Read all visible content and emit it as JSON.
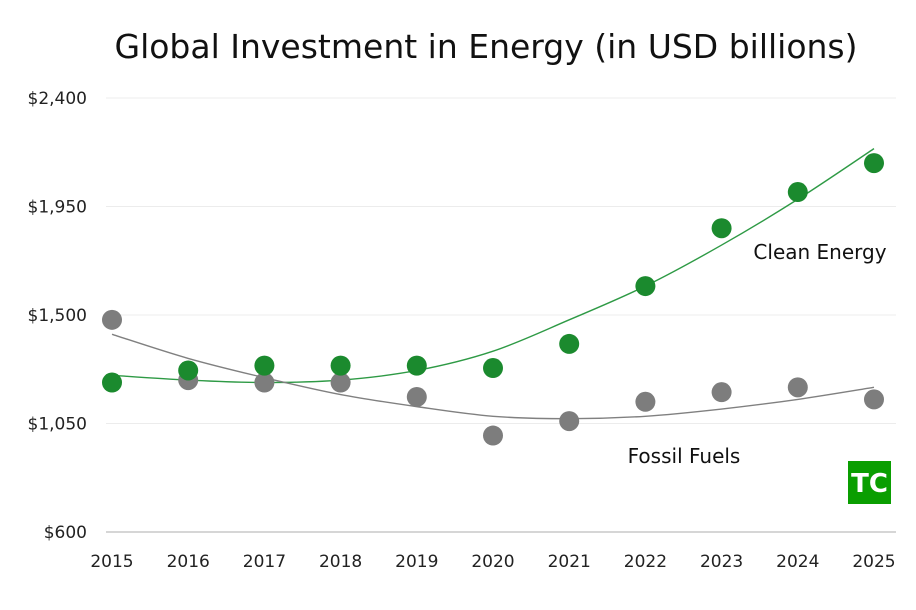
{
  "chart_data": {
    "type": "scatter",
    "title": "Global Investment in Energy (in USD billions)",
    "xlabel": "",
    "ylabel": "",
    "x": [
      2015,
      2016,
      2017,
      2018,
      2019,
      2020,
      2021,
      2022,
      2023,
      2024,
      2025
    ],
    "ylim": [
      600,
      2400
    ],
    "yticks": [
      600,
      1050,
      1500,
      1950,
      2400
    ],
    "ytick_labels": [
      "$600",
      "$1,050",
      "$1,500",
      "$1,950",
      "$2,400"
    ],
    "xtick_labels": [
      "2015",
      "2016",
      "2017",
      "2018",
      "2019",
      "2020",
      "2021",
      "2022",
      "2023",
      "2024",
      "2025"
    ],
    "grid": true,
    "series": [
      {
        "name": "Clean Energy",
        "color": "#1b8a2e",
        "trend_color": "#2e9a45",
        "values": [
          1220,
          1270,
          1290,
          1290,
          1290,
          1280,
          1380,
          1620,
          1860,
          2010,
          2130
        ],
        "trendline": [
          1250,
          1230,
          1220,
          1230,
          1270,
          1350,
          1480,
          1620,
          1790,
          1980,
          2190
        ]
      },
      {
        "name": "Fossil Fuels",
        "color": "#7d7d7d",
        "trend_color": "#808080",
        "values": [
          1480,
          1230,
          1220,
          1220,
          1160,
          1000,
          1060,
          1140,
          1180,
          1200,
          1150
        ],
        "trendline": [
          1420,
          1320,
          1240,
          1170,
          1120,
          1080,
          1070,
          1080,
          1110,
          1150,
          1200
        ]
      }
    ]
  },
  "logo": {
    "text": "TC",
    "color": "#0a9e01"
  }
}
